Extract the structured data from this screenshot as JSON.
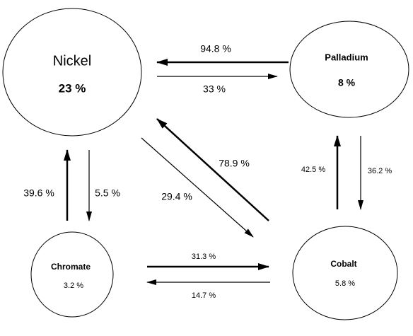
{
  "nodes": [
    {
      "label": "Nickel",
      "value": "23 %"
    },
    {
      "label": "Palladium",
      "value": "8 %"
    },
    {
      "label": "Chromate",
      "value": "3.2 %"
    },
    {
      "label": "Cobalt",
      "value": "5.8 %"
    }
  ],
  "edges": [
    {
      "label": "94.8 %"
    },
    {
      "label": "33 %"
    },
    {
      "label": "39.6 %"
    },
    {
      "label": "5.5 %"
    },
    {
      "label": "78.9 %"
    },
    {
      "label": "29.4 %"
    },
    {
      "label": "42.5 %"
    },
    {
      "label": "36.2 %"
    },
    {
      "label": "31.3 %"
    },
    {
      "label": "14.7 %"
    }
  ]
}
